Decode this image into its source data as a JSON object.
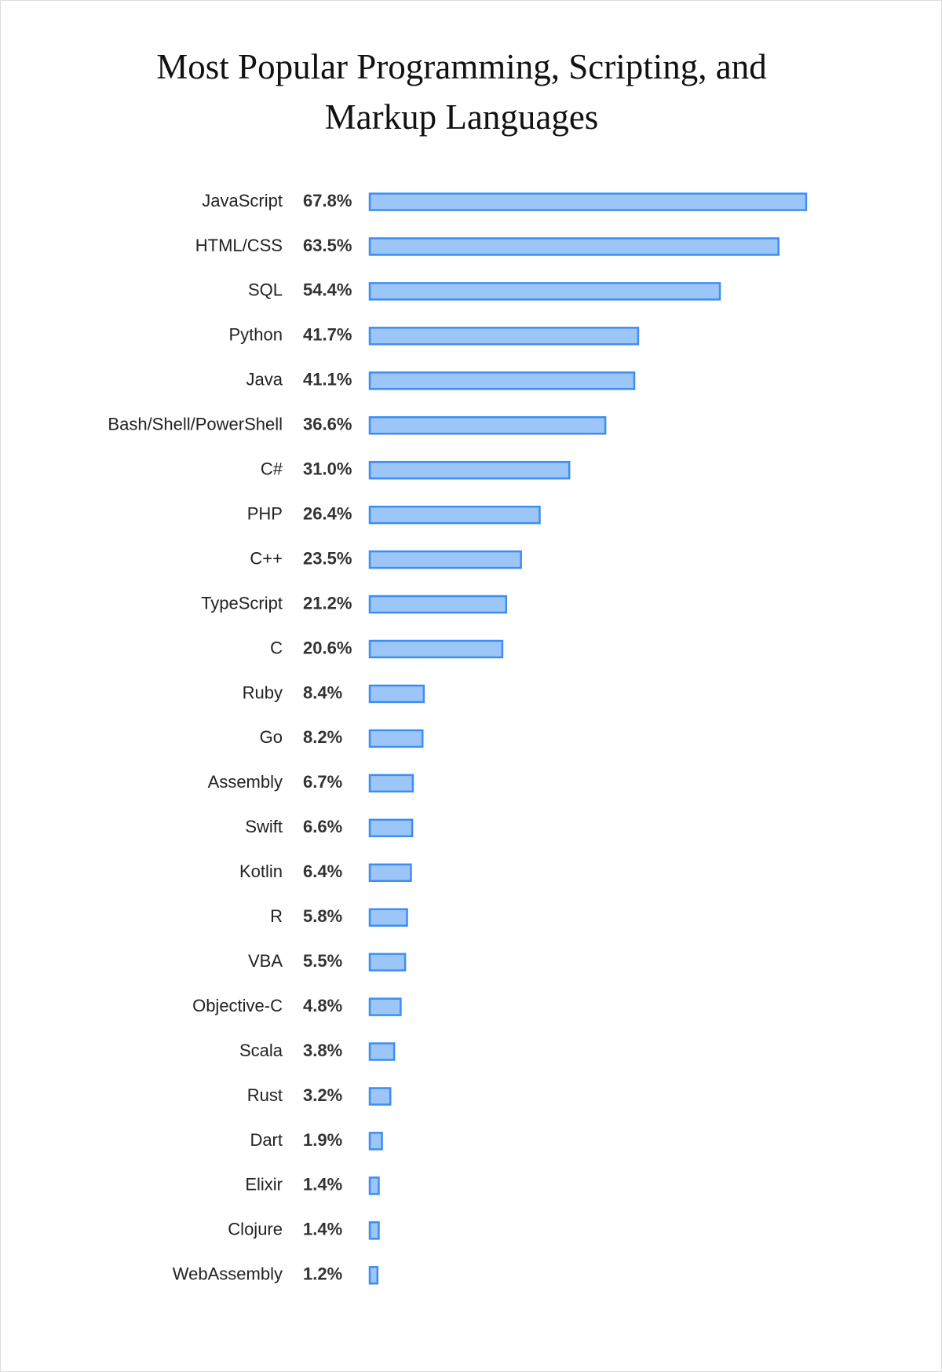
{
  "chart_data": {
    "type": "bar",
    "orientation": "horizontal",
    "title": "Most Popular Programming, Scripting, and Markup Languages",
    "categories": [
      "JavaScript",
      "HTML/CSS",
      "SQL",
      "Python",
      "Java",
      "Bash/Shell/PowerShell",
      "C#",
      "PHP",
      "C++",
      "TypeScript",
      "C",
      "Ruby",
      "Go",
      "Assembly",
      "Swift",
      "Kotlin",
      "R",
      "VBA",
      "Objective-C",
      "Scala",
      "Rust",
      "Dart",
      "Elixir",
      "Clojure",
      "WebAssembly"
    ],
    "values": [
      67.8,
      63.5,
      54.4,
      41.7,
      41.1,
      36.6,
      31.0,
      26.4,
      23.5,
      21.2,
      20.6,
      8.4,
      8.2,
      6.7,
      6.6,
      6.4,
      5.8,
      5.5,
      4.8,
      3.8,
      3.2,
      1.9,
      1.4,
      1.4,
      1.2
    ],
    "value_labels": [
      "67.8%",
      "63.5%",
      "54.4%",
      "41.7%",
      "41.1%",
      "36.6%",
      "31.0%",
      "26.4%",
      "23.5%",
      "21.2%",
      "20.6%",
      "8.4%",
      "8.2%",
      "6.7%",
      "6.6%",
      "6.4%",
      "5.8%",
      "5.5%",
      "4.8%",
      "3.8%",
      "3.2%",
      "1.9%",
      "1.4%",
      "1.4%",
      "1.2%"
    ],
    "color": "#9cc5f8",
    "edge_color": "#3d8ef0"
  }
}
